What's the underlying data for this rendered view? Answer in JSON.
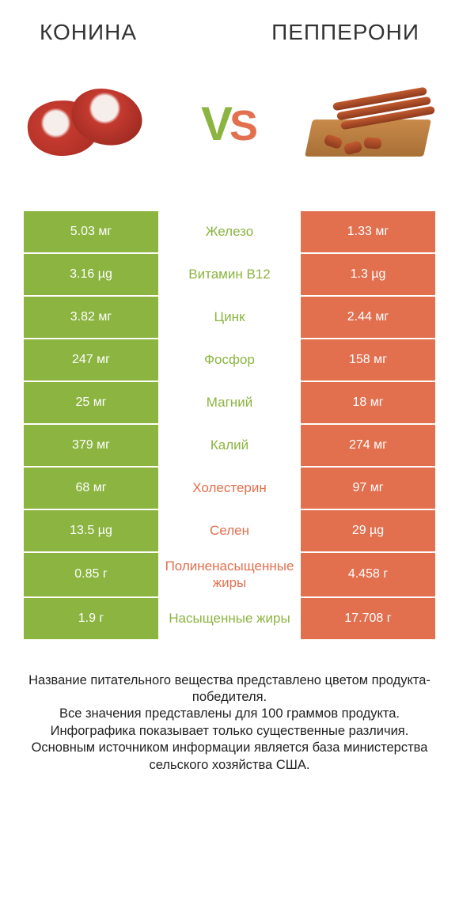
{
  "colors": {
    "left": "#8bb440",
    "right": "#e2704f",
    "left_text": "#8bb440",
    "right_text": "#e2704f",
    "vs_v": "#8bb440",
    "vs_s": "#e2704f",
    "background": "#ffffff",
    "body_text": "#333333"
  },
  "header": {
    "left": "КОНИНА",
    "right": "ПЕППЕРОНИ"
  },
  "vs": {
    "v": "V",
    "s": "S"
  },
  "rows": [
    {
      "left": "5.03 мг",
      "label": "Железо",
      "right": "1.33 мг",
      "winner": "left"
    },
    {
      "left": "3.16 µg",
      "label": "Витамин B12",
      "right": "1.3 µg",
      "winner": "left"
    },
    {
      "left": "3.82 мг",
      "label": "Цинк",
      "right": "2.44 мг",
      "winner": "left"
    },
    {
      "left": "247 мг",
      "label": "Фосфор",
      "right": "158 мг",
      "winner": "left"
    },
    {
      "left": "25 мг",
      "label": "Магний",
      "right": "18 мг",
      "winner": "left"
    },
    {
      "left": "379 мг",
      "label": "Калий",
      "right": "274 мг",
      "winner": "left"
    },
    {
      "left": "68 мг",
      "label": "Холестерин",
      "right": "97 мг",
      "winner": "right"
    },
    {
      "left": "13.5 µg",
      "label": "Селен",
      "right": "29 µg",
      "winner": "right"
    },
    {
      "left": "0.85 г",
      "label": "Полиненасыщенные жиры",
      "right": "4.458 г",
      "winner": "right"
    },
    {
      "left": "1.9 г",
      "label": "Насыщенные жиры",
      "right": "17.708 г",
      "winner": "left"
    }
  ],
  "footer": {
    "l1": "Название питательного вещества представлено цветом продукта-победителя.",
    "l2": "Все значения представлены для 100 граммов продукта.",
    "l3": "Инфографика показывает только существенные различия.",
    "l4": "Основным источником информации является база министерства сельского хозяйства США."
  }
}
